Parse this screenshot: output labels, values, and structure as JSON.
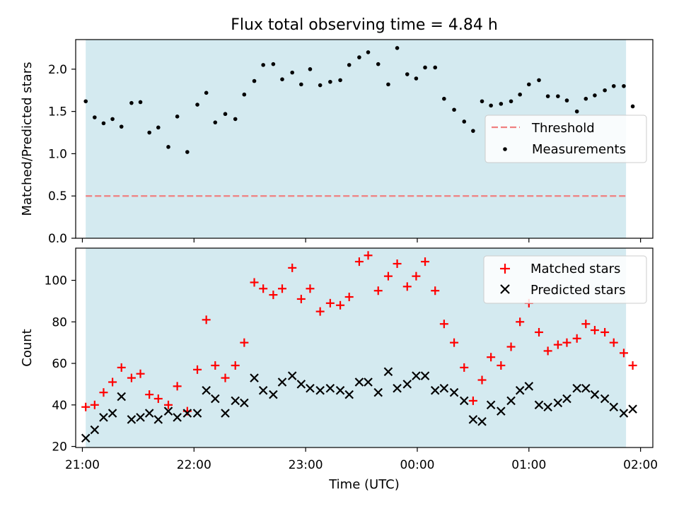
{
  "chart_data": [
    {
      "type": "scatter",
      "title": "Flux total observing time = 4.84 h",
      "ylabel": "Matched/Predicted stars",
      "xlabel": "",
      "x_unit": "hours since 21:00 UTC",
      "xlim": [
        -0.06,
        5.11
      ],
      "ylim": [
        0,
        2.35
      ],
      "yticks": [
        0.0,
        0.5,
        1.0,
        1.5,
        2.0
      ],
      "ytick_labels": [
        "0.0",
        "0.5",
        "1.0",
        "1.5",
        "2.0"
      ],
      "xticks": [
        0,
        1,
        2,
        3,
        4,
        5
      ],
      "observing_window": [
        0.03,
        4.87
      ],
      "observing_window_color": "#d4eaf0",
      "legend": {
        "placement": "right",
        "entries": [
          "Threshold",
          "Measurements"
        ]
      },
      "threshold": {
        "name": "Threshold",
        "value": 0.5,
        "x_range": [
          0.03,
          4.87
        ],
        "color": "#f08080",
        "style": "dashed"
      },
      "series": [
        {
          "name": "Measurements",
          "color": "#000000",
          "marker": "dot",
          "x": [
            0.03,
            0.11,
            0.19,
            0.27,
            0.35,
            0.44,
            0.52,
            0.6,
            0.68,
            0.77,
            0.85,
            0.94,
            1.03,
            1.11,
            1.19,
            1.28,
            1.37,
            1.45,
            1.54,
            1.62,
            1.71,
            1.79,
            1.88,
            1.96,
            2.04,
            2.13,
            2.22,
            2.31,
            2.39,
            2.48,
            2.56,
            2.65,
            2.74,
            2.82,
            2.91,
            2.99,
            3.07,
            3.16,
            3.24,
            3.33,
            3.42,
            3.5,
            3.58,
            3.66,
            3.75,
            3.84,
            3.92,
            4.0,
            4.09,
            4.17,
            4.26,
            4.34,
            4.43,
            4.51,
            4.59,
            4.68,
            4.76,
            4.85,
            4.93
          ],
          "y": [
            1.62,
            1.43,
            1.36,
            1.41,
            1.32,
            1.6,
            1.61,
            1.25,
            1.31,
            1.08,
            1.44,
            1.02,
            1.58,
            1.72,
            1.37,
            1.47,
            1.41,
            1.7,
            1.86,
            2.05,
            2.06,
            1.88,
            1.96,
            1.82,
            2.0,
            1.81,
            1.85,
            1.87,
            2.05,
            2.14,
            2.2,
            2.06,
            1.82,
            2.25,
            1.94,
            1.89,
            2.02,
            2.02,
            1.65,
            1.52,
            1.38,
            1.27,
            1.62,
            1.57,
            1.59,
            1.62,
            1.7,
            1.82,
            1.87,
            1.68,
            1.68,
            1.63,
            1.5,
            1.65,
            1.69,
            1.75,
            1.8,
            1.8,
            1.56
          ]
        }
      ]
    },
    {
      "type": "scatter",
      "title": "",
      "ylabel": "Count",
      "xlabel": "Time (UTC)",
      "x_unit": "hours since 21:00 UTC",
      "xlim": [
        -0.06,
        5.11
      ],
      "ylim": [
        19.5,
        115.5
      ],
      "yticks": [
        20,
        40,
        60,
        80,
        100
      ],
      "ytick_labels": [
        "20",
        "40",
        "60",
        "80",
        "100"
      ],
      "xticks": [
        0,
        1,
        2,
        3,
        4,
        5
      ],
      "xtick_labels": [
        "21:00",
        "22:00",
        "23:00",
        "00:00",
        "01:00",
        "02:00"
      ],
      "observing_window": [
        0.03,
        4.87
      ],
      "observing_window_color": "#d4eaf0",
      "legend": {
        "placement": "top-right",
        "entries": [
          "Matched stars",
          "Predicted stars"
        ]
      },
      "series": [
        {
          "name": "Matched stars",
          "color": "#ff0000",
          "marker": "plus",
          "x": [
            0.03,
            0.11,
            0.19,
            0.27,
            0.35,
            0.44,
            0.52,
            0.6,
            0.68,
            0.77,
            0.85,
            0.94,
            1.03,
            1.11,
            1.19,
            1.28,
            1.37,
            1.45,
            1.54,
            1.62,
            1.71,
            1.79,
            1.88,
            1.96,
            2.04,
            2.13,
            2.22,
            2.31,
            2.39,
            2.48,
            2.56,
            2.65,
            2.74,
            2.82,
            2.91,
            2.99,
            3.07,
            3.16,
            3.24,
            3.33,
            3.42,
            3.5,
            3.58,
            3.66,
            3.75,
            3.84,
            3.92,
            4.0,
            4.09,
            4.17,
            4.26,
            4.34,
            4.43,
            4.51,
            4.59,
            4.68,
            4.76,
            4.85,
            4.93
          ],
          "y": [
            39,
            40,
            46,
            51,
            58,
            53,
            55,
            45,
            43,
            40,
            49,
            37,
            57,
            81,
            59,
            53,
            59,
            70,
            99,
            96,
            93,
            96,
            106,
            91,
            96,
            85,
            89,
            88,
            92,
            109,
            112,
            95,
            102,
            108,
            97,
            102,
            109,
            95,
            79,
            70,
            58,
            42,
            52,
            63,
            59,
            68,
            80,
            89,
            75,
            66,
            69,
            70,
            72,
            79,
            76,
            75,
            70,
            65,
            59
          ]
        },
        {
          "name": "Predicted stars",
          "color": "#000000",
          "marker": "x",
          "x": [
            0.03,
            0.11,
            0.19,
            0.27,
            0.35,
            0.44,
            0.52,
            0.6,
            0.68,
            0.77,
            0.85,
            0.94,
            1.03,
            1.11,
            1.19,
            1.28,
            1.37,
            1.45,
            1.54,
            1.62,
            1.71,
            1.79,
            1.88,
            1.96,
            2.04,
            2.13,
            2.22,
            2.31,
            2.39,
            2.48,
            2.56,
            2.65,
            2.74,
            2.82,
            2.91,
            2.99,
            3.07,
            3.16,
            3.24,
            3.33,
            3.42,
            3.5,
            3.58,
            3.66,
            3.75,
            3.84,
            3.92,
            4.0,
            4.09,
            4.17,
            4.26,
            4.34,
            4.43,
            4.51,
            4.59,
            4.68,
            4.76,
            4.85,
            4.93
          ],
          "y": [
            24,
            28,
            34,
            36,
            44,
            33,
            34,
            36,
            33,
            37,
            34,
            36,
            36,
            47,
            43,
            36,
            42,
            41,
            53,
            47,
            45,
            51,
            54,
            50,
            48,
            47,
            48,
            47,
            45,
            51,
            51,
            46,
            56,
            48,
            50,
            54,
            54,
            47,
            48,
            46,
            42,
            33,
            32,
            40,
            37,
            42,
            47,
            49,
            40,
            39,
            41,
            43,
            48,
            48,
            45,
            43,
            39,
            36,
            38
          ]
        }
      ]
    }
  ]
}
